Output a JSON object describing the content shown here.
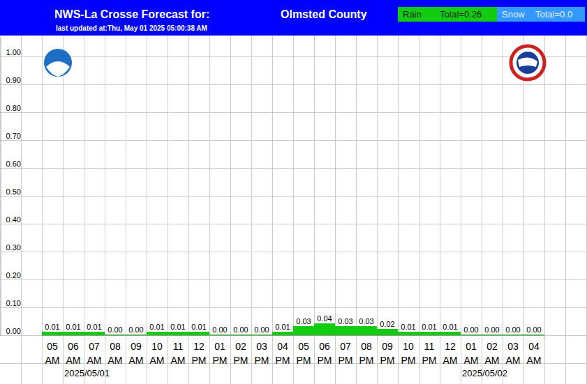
{
  "chart_data": {
    "type": "bar",
    "title": "NWS-La Crosse Forecast for:",
    "subtitle": "last updated at:Thu, May 01 2025 05:00:38 AM",
    "annotations": [
      "Olmsted County"
    ],
    "categories": [
      "05 AM",
      "06 AM",
      "07 AM",
      "08 AM",
      "09 AM",
      "10 AM",
      "11 AM",
      "12 PM",
      "01 PM",
      "02 PM",
      "03 PM",
      "04 PM",
      "05 PM",
      "06 PM",
      "07 PM",
      "08 PM",
      "09 PM",
      "10 PM",
      "11 PM",
      "12 AM",
      "01 AM",
      "02 AM",
      "03 AM",
      "04 AM"
    ],
    "date_labels": [
      null,
      "2025/05/01",
      null,
      null,
      null,
      null,
      null,
      null,
      null,
      null,
      null,
      null,
      null,
      null,
      null,
      null,
      null,
      null,
      null,
      null,
      "2025/05/02",
      null,
      null,
      null
    ],
    "series": [
      {
        "name": "Rain",
        "color": "#11cc11",
        "values": [
          0.01,
          0.01,
          0.01,
          0.0,
          0.0,
          0.01,
          0.01,
          0.01,
          0.0,
          0.0,
          0.0,
          0.01,
          0.03,
          0.04,
          0.03,
          0.03,
          0.02,
          0.01,
          0.01,
          0.01,
          0.0,
          0.0,
          0.0,
          0.0
        ],
        "value_labels": [
          "0.01",
          "0.01",
          "0.01",
          "0.00",
          "0.00",
          "0.01",
          "0.01",
          "0.01",
          "0.00",
          "0.00",
          "0.00",
          "0.01",
          "0.03",
          "0.04",
          "0.03",
          "0.03",
          "0.02",
          "0.01",
          "0.01",
          "0.01",
          "0.00",
          "0.00",
          "0.00",
          "0.00"
        ],
        "total": 0.26,
        "total_label": "Total=0.26"
      },
      {
        "name": "Snow",
        "color": "#3399ff",
        "total": 0.0,
        "total_label": "Total=0.0"
      }
    ],
    "ylim": [
      0,
      1.07
    ],
    "yticks": [
      {
        "value": 0,
        "label": "0.00"
      },
      {
        "value": 0.1,
        "label": "0.10"
      },
      {
        "value": 0.2,
        "label": "0.20"
      },
      {
        "value": 0.3,
        "label": "0.30"
      },
      {
        "value": 0.4,
        "label": "0.40"
      },
      {
        "value": 0.5,
        "label": "0.50"
      },
      {
        "value": 0.6,
        "label": "0.60"
      },
      {
        "value": 0.7,
        "label": "0.70"
      },
      {
        "value": 0.8,
        "label": "0.80"
      },
      {
        "value": 0.9,
        "label": "0.90"
      },
      {
        "value": 1,
        "label": "1.00"
      }
    ],
    "grid": true,
    "data_labels": true,
    "legend": "top-right"
  }
}
